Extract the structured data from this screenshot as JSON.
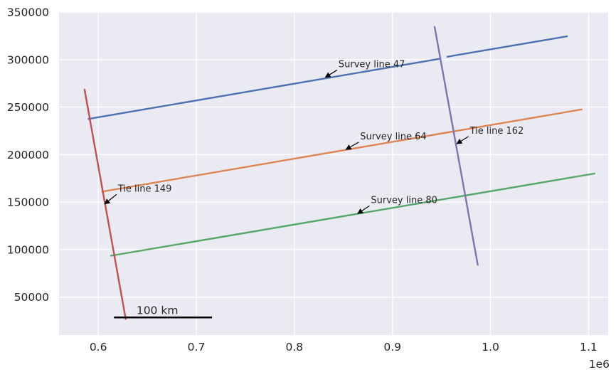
{
  "chart_data": {
    "type": "line",
    "title": "",
    "xlabel": "",
    "ylabel": "",
    "x_offset_label": "1e6",
    "xlim": [
      560000,
      1120000
    ],
    "ylim": [
      10000,
      350000
    ],
    "grid": true,
    "x_ticks": [
      {
        "value": 600000,
        "label": "0.6"
      },
      {
        "value": 700000,
        "label": "0.7"
      },
      {
        "value": 800000,
        "label": "0.8"
      },
      {
        "value": 900000,
        "label": "0.9"
      },
      {
        "value": 1000000,
        "label": "1.0"
      },
      {
        "value": 1100000,
        "label": "1.1"
      }
    ],
    "y_ticks": [
      {
        "value": 50000,
        "label": "50000"
      },
      {
        "value": 100000,
        "label": "100000"
      },
      {
        "value": 150000,
        "label": "150000"
      },
      {
        "value": 200000,
        "label": "200000"
      },
      {
        "value": 250000,
        "label": "250000"
      },
      {
        "value": 300000,
        "label": "300000"
      },
      {
        "value": 350000,
        "label": "350000"
      }
    ],
    "series": [
      {
        "color": "#4c72b0",
        "segments": [
          [
            [
              590000,
              237500
            ],
            [
              949000,
              301000
            ]
          ],
          [
            [
              956000,
              303000
            ],
            [
              1078000,
              324500
            ]
          ]
        ]
      },
      {
        "color": "#dd8452",
        "segments": [
          [
            [
              604000,
              161000
            ],
            [
              1093000,
              247500
            ]
          ]
        ]
      },
      {
        "color": "#55a868",
        "segments": [
          [
            [
              613000,
              93500
            ],
            [
              1106000,
              180000
            ]
          ]
        ]
      },
      {
        "color": "#c44e52",
        "segments": [
          [
            [
              586000,
              268500
            ],
            [
              628000,
              27000
            ]
          ]
        ]
      },
      {
        "color": "#8172b3",
        "segments": [
          [
            [
              943000,
              334500
            ],
            [
              987000,
              84000
            ]
          ]
        ]
      }
    ],
    "annotations": [
      {
        "text": "Survey line 47",
        "text_x": 845000,
        "text_y": 292000,
        "point_x": 831000,
        "point_y": 281000
      },
      {
        "text": "Survey line 64",
        "text_x": 867000,
        "text_y": 216000,
        "point_x": 852000,
        "point_y": 205000
      },
      {
        "text": "Survey line 80",
        "text_x": 878000,
        "text_y": 149000,
        "point_x": 864000,
        "point_y": 137500
      },
      {
        "text": "Tie line 162",
        "text_x": 979000,
        "text_y": 222000,
        "point_x": 965000,
        "point_y": 211000
      },
      {
        "text": "Tie line 149",
        "text_x": 620000,
        "text_y": 161000,
        "point_x": 606000,
        "point_y": 147500
      }
    ],
    "scale_bar": {
      "label": "100 km",
      "x_start": 616000,
      "x_end": 716000,
      "y": 28500
    }
  }
}
